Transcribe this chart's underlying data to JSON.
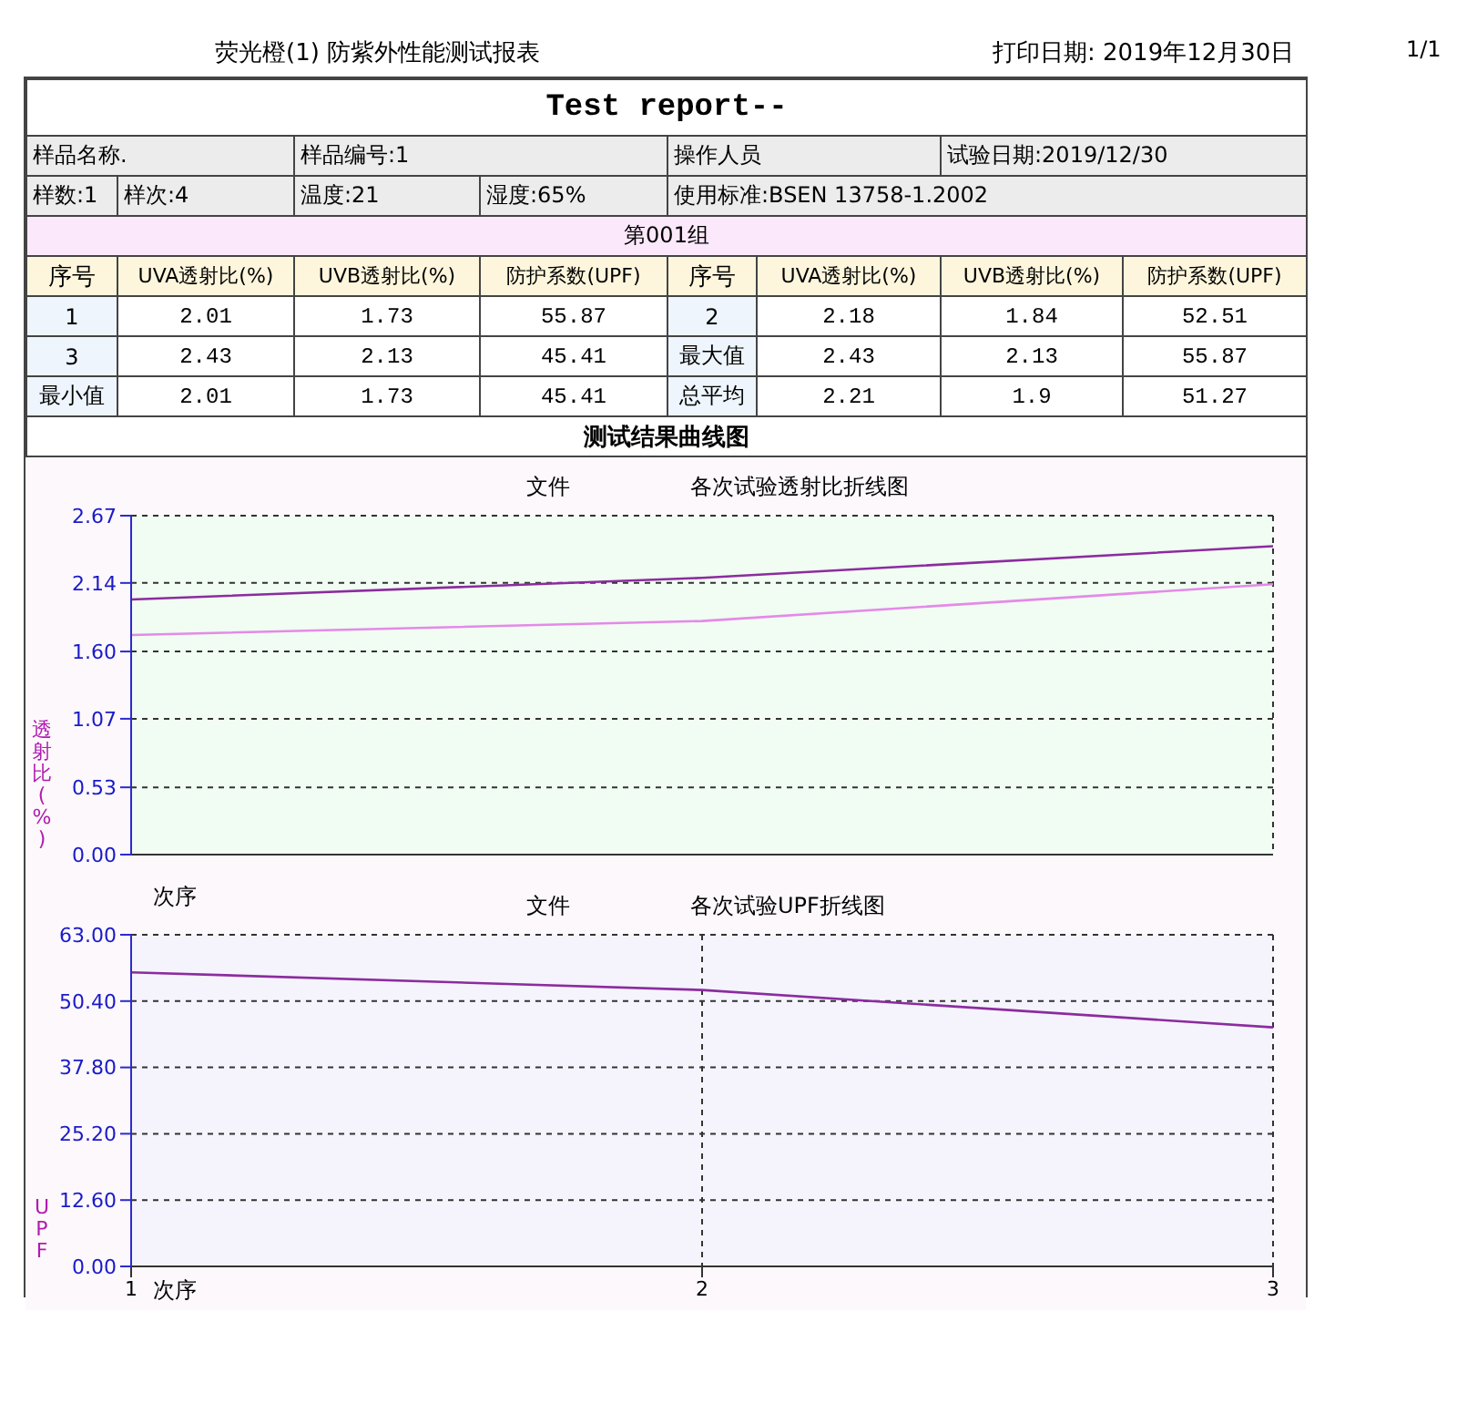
{
  "chart_data": [
    {
      "type": "line",
      "title": "各次试验透射比折线图",
      "xlabel": "次序",
      "ylabel": "透射比(%)",
      "x": [
        1,
        2,
        3
      ],
      "series": [
        {
          "color": "#8b2c9e",
          "values": [
            2.01,
            2.18,
            2.43
          ]
        },
        {
          "color": "#e48ae8",
          "values": [
            1.73,
            1.84,
            2.13
          ]
        }
      ],
      "xlim": [
        1,
        3
      ],
      "xticks": [
        1,
        2,
        3
      ],
      "ylim": [
        0,
        2.67
      ],
      "yticks": [
        {
          "value": 0,
          "label": "0.00"
        },
        0.53,
        1.07,
        {
          "value": 1.6,
          "label": "1.60"
        },
        2.14,
        2.67
      ],
      "grid": true,
      "tick_labels": "y",
      "annotations": [
        "荧光橙(1) 防紫外性能测试报表",
        "打印日期: 2019年12月30日",
        "1/1",
        "Test report--",
        "样品名称.",
        "样品编号:1",
        "操作人员",
        "试验日期:2019/12/30",
        "样数:1",
        "样次:4",
        "温度:21",
        "湿度:65%",
        "使用标准:BSEN 13758-1.2002",
        "第001组",
        "序号",
        "UVA透射比(%)",
        "UVB透射比(%)",
        "防护系数(UPF)",
        "1",
        "2.01",
        "1.73",
        "55.87",
        "2",
        "2.18",
        "1.84",
        "52.51",
        "3",
        "2.43",
        "2.13",
        "45.41",
        "最大值",
        "2.43",
        "2.13",
        "55.87",
        "最小值",
        "2.01",
        "1.73",
        "45.41",
        "总平均",
        "2.21",
        "1.9",
        "51.27",
        "测试结果曲线图",
        "文件"
      ]
    },
    {
      "type": "line",
      "title": "各次试验UPF折线图",
      "xlabel": "次序",
      "ylabel": "UPF",
      "x": [
        1,
        2,
        3
      ],
      "series": [
        {
          "color": "#8b2c9e",
          "values": [
            55.87,
            52.51,
            45.41
          ]
        }
      ],
      "xlim": [
        1,
        3
      ],
      "xticks": [
        1,
        2,
        3
      ],
      "ylim": [
        0,
        63
      ],
      "yticks": [
        {
          "value": 0,
          "label": "0.00"
        },
        {
          "value": 12.6,
          "label": "12.60"
        },
        {
          "value": 25.2,
          "label": "25.20"
        },
        {
          "value": 37.8,
          "label": "37.80"
        },
        {
          "value": 50.4,
          "label": "50.40"
        },
        {
          "value": 63,
          "label": "63.00"
        }
      ],
      "grid": true,
      "annotations": [
        "文件"
      ]
    }
  ]
}
